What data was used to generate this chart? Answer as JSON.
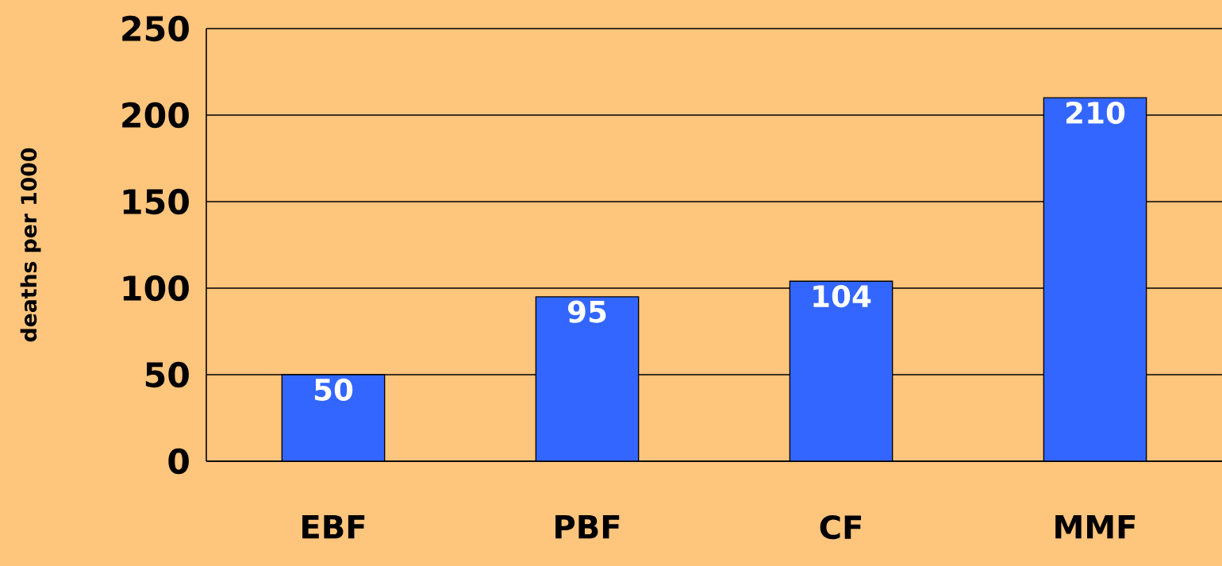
{
  "chart_data": {
    "type": "bar",
    "ylabel": "deaths per 1000",
    "categories": [
      "EBF",
      "PBF",
      "CF",
      "MMF"
    ],
    "values": [
      50,
      95,
      104,
      210
    ],
    "color": "#3366ff",
    "ylim": [
      0,
      250
    ],
    "yticks": [
      0,
      50,
      100,
      150,
      200,
      250
    ],
    "grid": "y",
    "data_labels": true
  }
}
